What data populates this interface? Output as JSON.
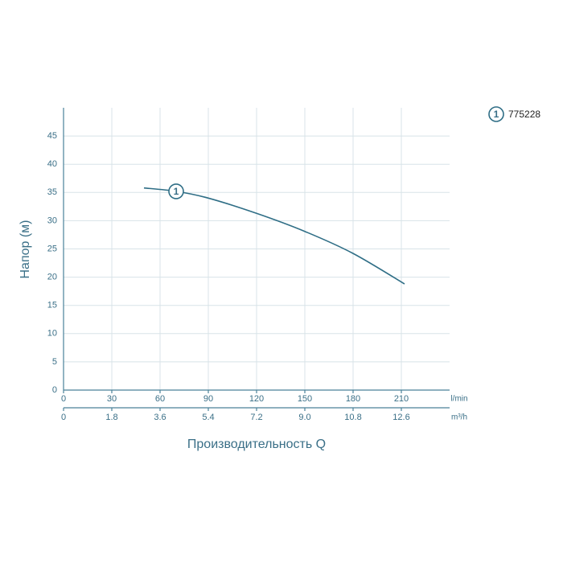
{
  "chart_data": {
    "type": "line",
    "ylabel": "Напор (м)",
    "xlabel": "Производительность Q",
    "x": [
      50,
      70,
      90,
      120,
      150,
      180,
      212
    ],
    "series": [
      {
        "name": "775228",
        "label": "1",
        "color": "#2f6e86",
        "values": [
          35.8,
          35.2,
          34.0,
          31.3,
          28.1,
          24.2,
          18.8
        ]
      }
    ],
    "xlim": [
      0,
      240
    ],
    "xticks": [
      0,
      30,
      60,
      90,
      120,
      150,
      180,
      210
    ],
    "x_unit": "l/min",
    "x2lim": [
      0,
      14.4
    ],
    "x2ticks": [
      0,
      1.8,
      3.6,
      5.4,
      7.2,
      {
        "value": 9,
        "label": "9.0"
      },
      10.8,
      12.6
    ],
    "x2_unit": "m³/h",
    "ylim": [
      0,
      50
    ],
    "yticks": [
      0,
      5,
      10,
      15,
      20,
      25,
      30,
      35,
      40,
      45
    ],
    "grid": true
  }
}
